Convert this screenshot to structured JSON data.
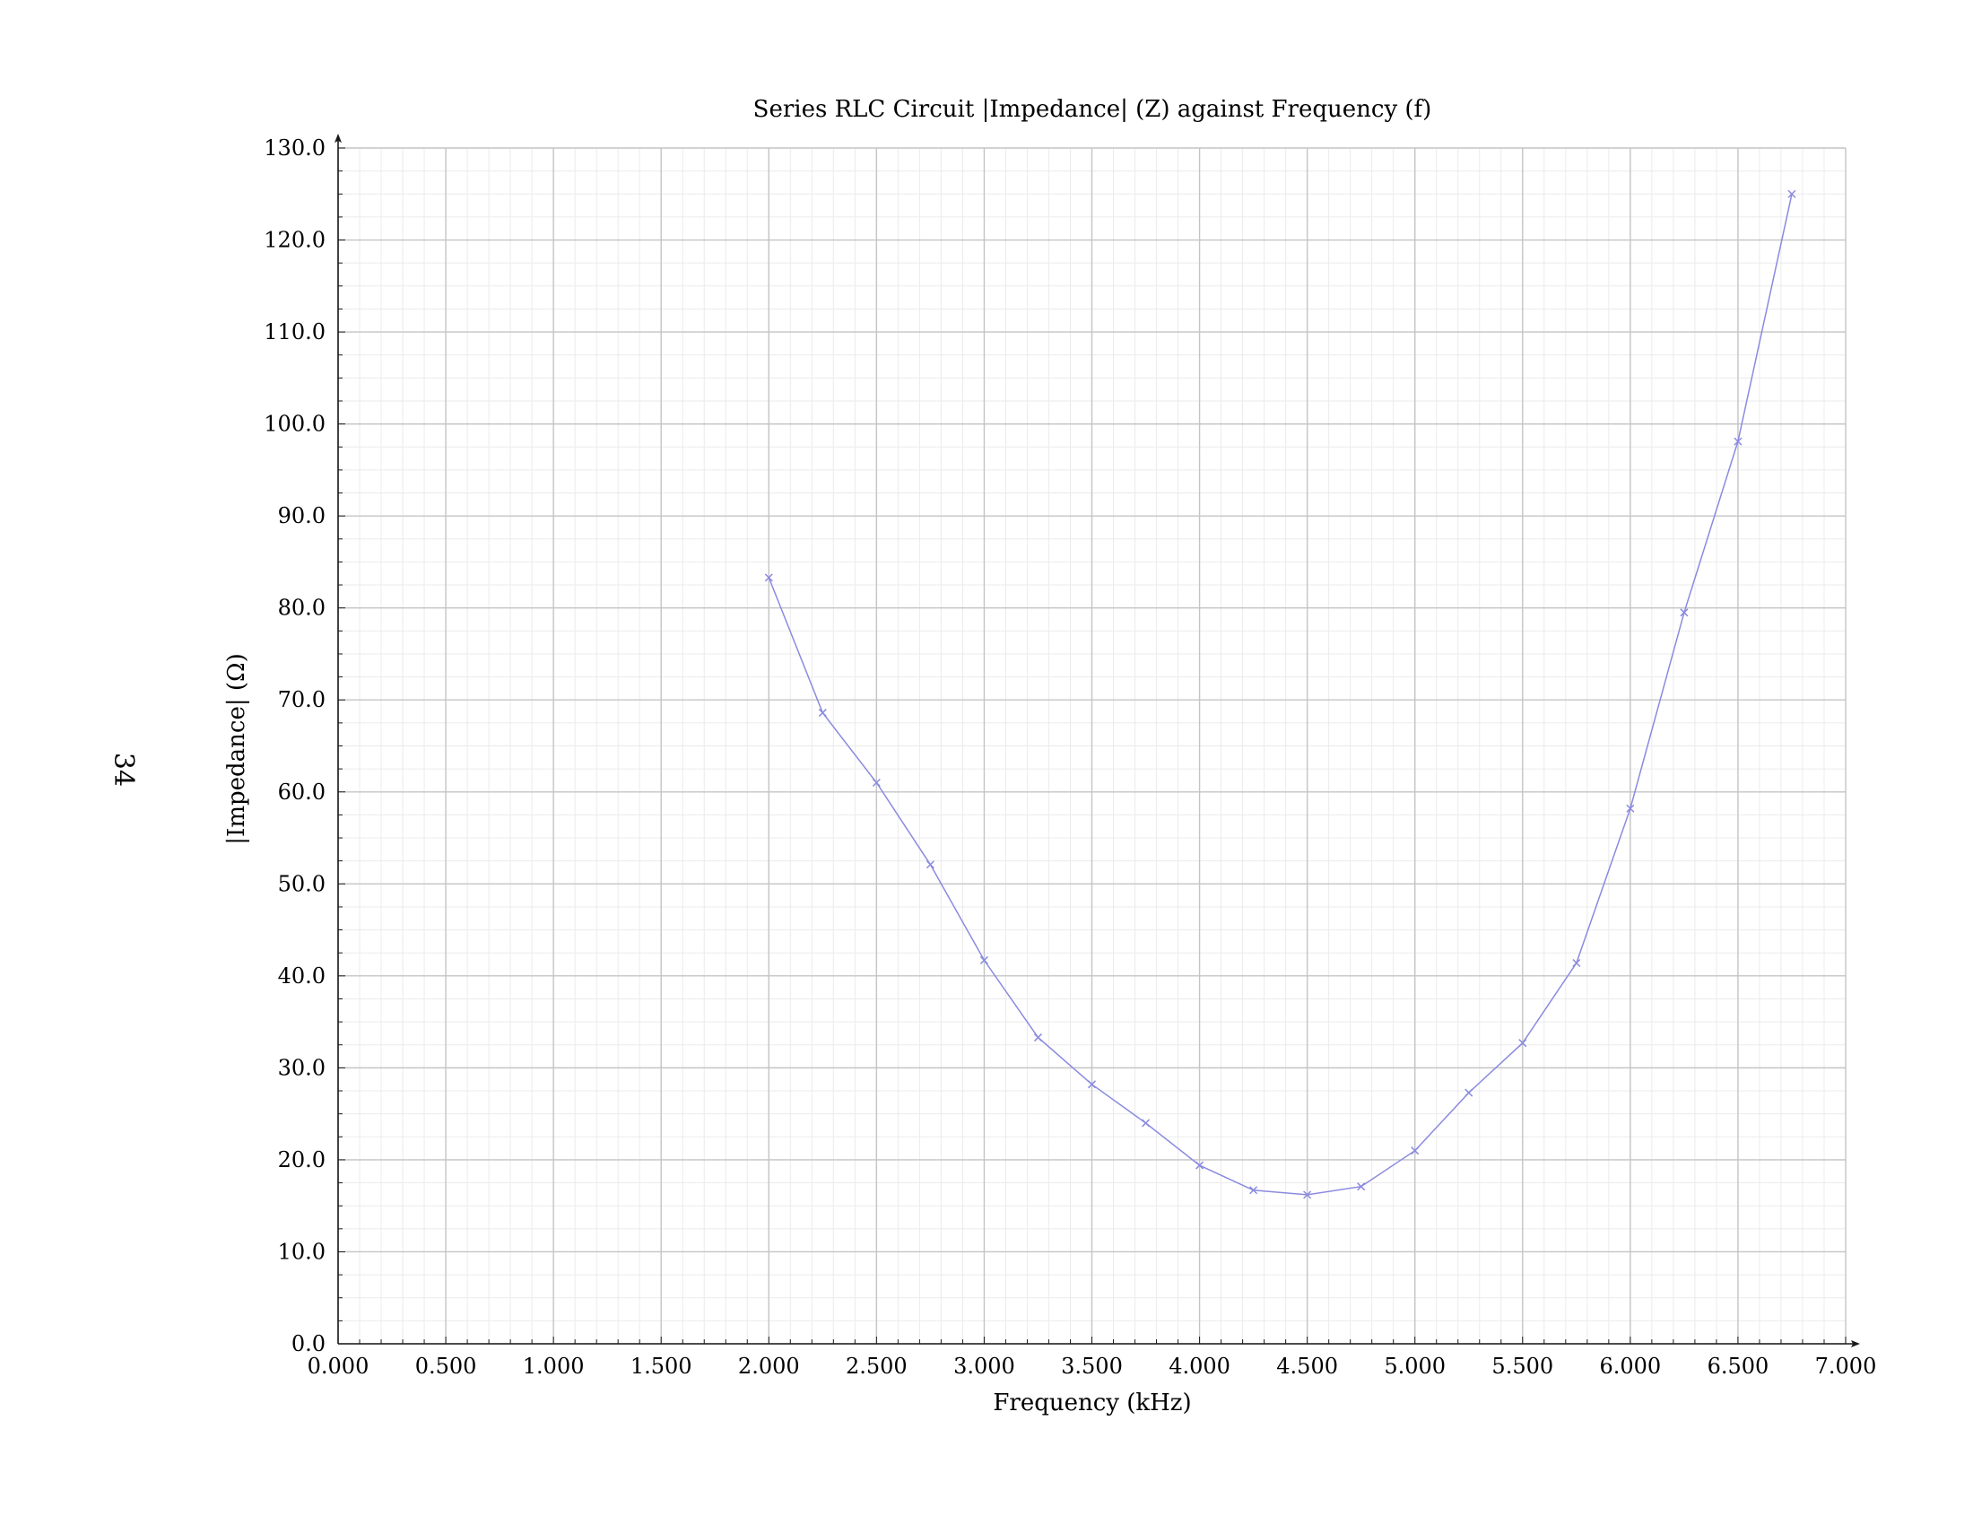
{
  "page_number": "34",
  "chart_data": {
    "type": "line",
    "title": "Series RLC Circuit |Impedance| (Z) against Frequency (f)",
    "xlabel": "Frequency (kHz)",
    "ylabel": "|Impedance| (Ω)",
    "xlim": [
      0,
      7
    ],
    "ylim": [
      0,
      130
    ],
    "x_ticks": [
      "0.000",
      "0.500",
      "1.000",
      "1.500",
      "2.000",
      "2.500",
      "3.000",
      "3.500",
      "4.000",
      "4.500",
      "5.000",
      "5.500",
      "6.000",
      "6.500",
      "7.000"
    ],
    "y_ticks": [
      "0.0",
      "10.0",
      "20.0",
      "30.0",
      "40.0",
      "50.0",
      "60.0",
      "70.0",
      "80.0",
      "90.0",
      "100.0",
      "110.0",
      "120.0",
      "130.0"
    ],
    "grid": true,
    "legend": false,
    "marker": "x",
    "color": "#8a8ae0",
    "series": [
      {
        "x": [
          2.0,
          2.25,
          2.5,
          2.75,
          3.0,
          3.25,
          3.5,
          3.75,
          4.0,
          4.25,
          4.5,
          4.75,
          5.0,
          5.25,
          5.5,
          5.75,
          6.0,
          6.25,
          6.5,
          6.75
        ],
        "y": [
          83.3,
          68.6,
          61.0,
          52.1,
          41.7,
          33.3,
          28.2,
          24.0,
          19.4,
          16.7,
          16.2,
          17.1,
          21.0,
          27.3,
          32.7,
          41.4,
          58.2,
          79.5,
          98.1,
          125.0
        ]
      }
    ]
  }
}
